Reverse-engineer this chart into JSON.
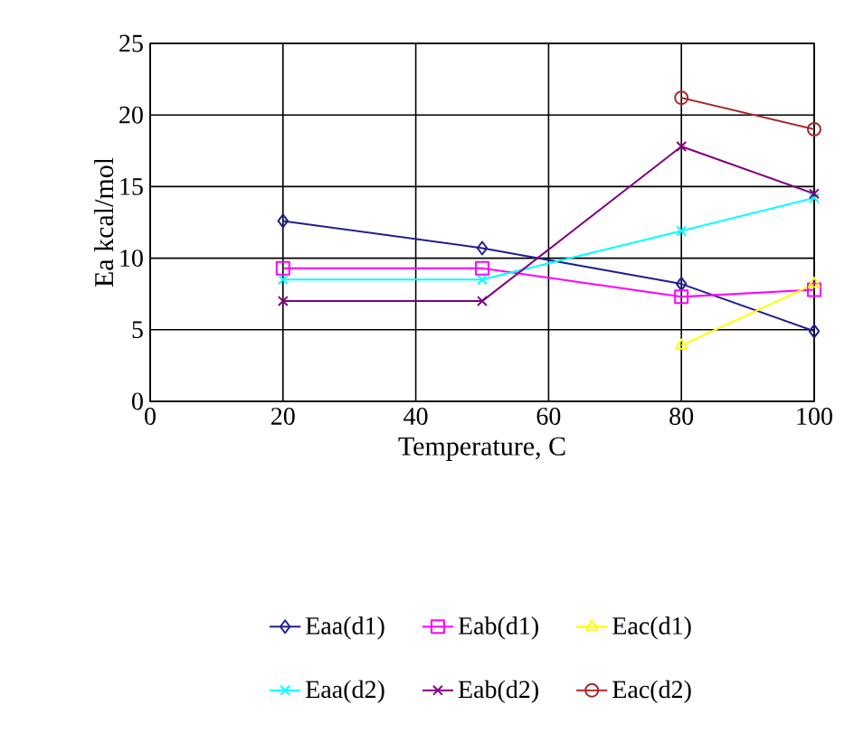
{
  "chart_data": {
    "type": "line",
    "xlabel": "Temperature, C",
    "ylabel": "Ea kcal/mol",
    "xlim": [
      0,
      100
    ],
    "xticks": [
      0,
      20,
      40,
      60,
      80,
      100
    ],
    "ylim": [
      0,
      25
    ],
    "yticks": [
      0,
      5,
      10,
      15,
      20,
      25
    ],
    "grid": true,
    "legend": "bottom",
    "line_style": "solid",
    "series": [
      {
        "name": "Eaa(d1)",
        "color": "#1f1f8f",
        "marker": "diamond",
        "x": [
          20,
          50,
          80,
          100
        ],
        "values": [
          12.6,
          10.7,
          8.2,
          4.9
        ]
      },
      {
        "name": "Eab(d1)",
        "color": "#ff00ff",
        "marker": "square",
        "x": [
          20,
          50,
          80,
          100
        ],
        "values": [
          9.3,
          9.3,
          7.3,
          7.8
        ]
      },
      {
        "name": "Eac(d1)",
        "color": "#ffff00",
        "marker": "triangle",
        "x": [
          80,
          100
        ],
        "values": [
          3.9,
          8.2
        ]
      },
      {
        "name": "Eaa(d2)",
        "color": "#00ffff",
        "marker": "cross",
        "x": [
          20,
          50,
          80,
          100
        ],
        "values": [
          8.5,
          8.5,
          11.9,
          14.2
        ]
      },
      {
        "name": "Eab(d2)",
        "color": "#800080",
        "marker": "cross",
        "x": [
          20,
          50,
          80,
          100
        ],
        "values": [
          7.0,
          7.0,
          17.8,
          14.5
        ]
      },
      {
        "name": "Eac(d2)",
        "color": "#a52a2a",
        "marker": "circle",
        "x": [
          80,
          100
        ],
        "values": [
          21.2,
          19.0
        ]
      }
    ]
  }
}
